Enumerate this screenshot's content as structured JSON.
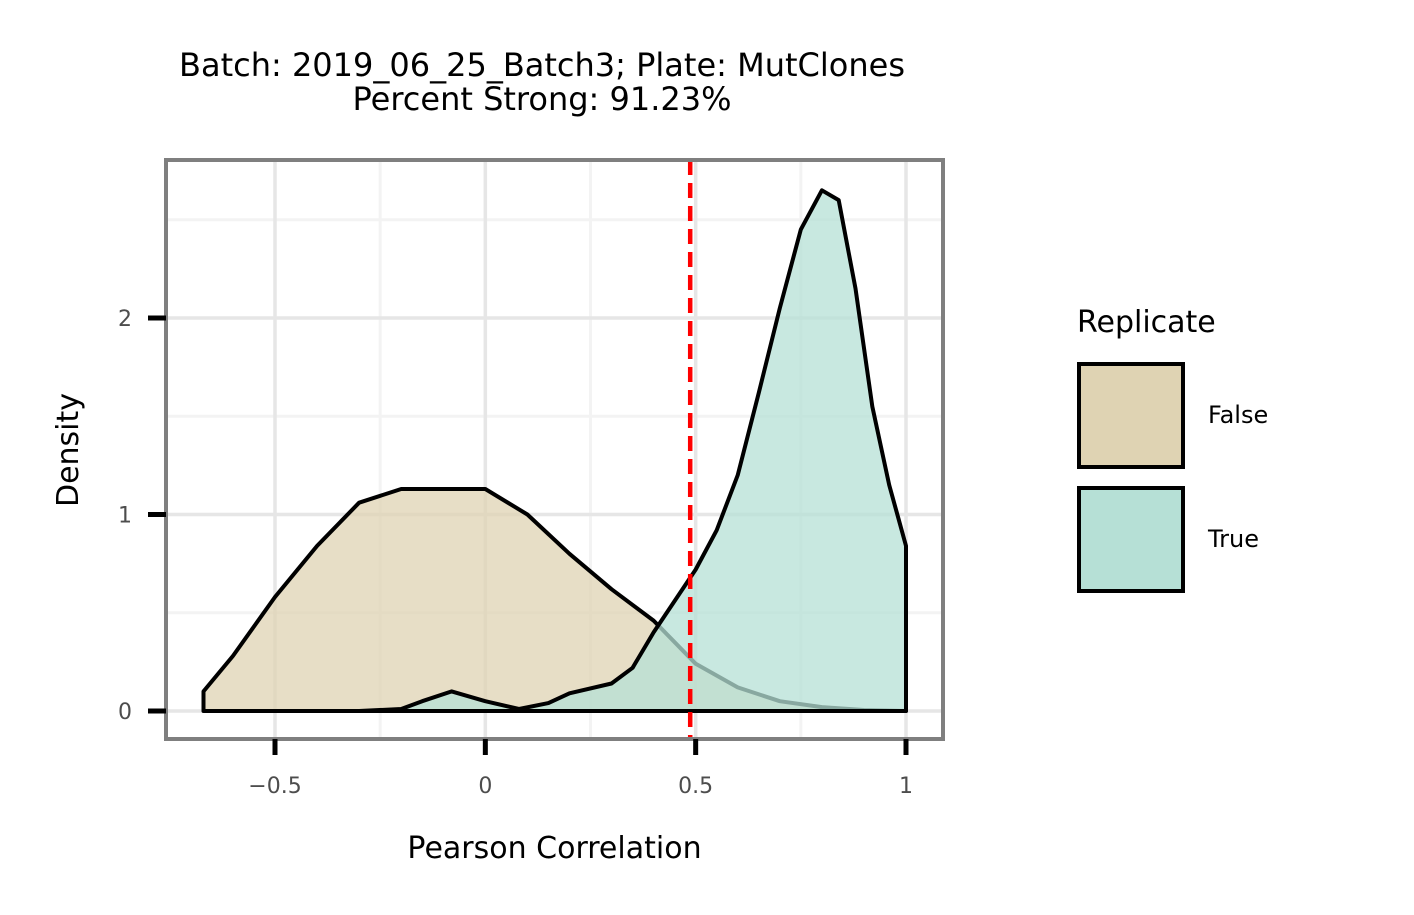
{
  "chart_data": {
    "type": "area",
    "title": "Batch: 2019_06_25_Batch3; Plate: MutClones",
    "subtitle": "Percent Strong: 91.23%",
    "xlabel": "Pearson Correlation",
    "ylabel": "Density",
    "xlim": [
      -0.75,
      1.09
    ],
    "ylim": [
      -0.14,
      2.81
    ],
    "x_ticks": [
      -0.5,
      0,
      0.5,
      1
    ],
    "x_tick_labels": [
      "−0.5",
      "0",
      "0.5",
      "1"
    ],
    "y_ticks": [
      0,
      1,
      2
    ],
    "y_tick_labels": [
      "0",
      "1",
      "2"
    ],
    "grid": true,
    "threshold_line": {
      "x": 0.487,
      "color": "#ff0000",
      "style": "dashed"
    },
    "legend": {
      "title": "Replicate",
      "position": "right"
    },
    "series": [
      {
        "name": "False",
        "color": "#dfd3b3",
        "x": [
          -0.67,
          -0.67,
          -0.6,
          -0.5,
          -0.4,
          -0.3,
          -0.2,
          -0.1,
          0.0,
          0.1,
          0.2,
          0.3,
          0.4,
          0.5,
          0.6,
          0.7,
          0.8,
          0.9,
          1.0
        ],
        "y": [
          0.0,
          0.1,
          0.28,
          0.58,
          0.84,
          1.06,
          1.13,
          1.13,
          1.13,
          1.0,
          0.8,
          0.62,
          0.46,
          0.24,
          0.12,
          0.05,
          0.02,
          0.005,
          0.0
        ]
      },
      {
        "name": "True",
        "color": "#b6e0d6",
        "x": [
          -0.3,
          -0.2,
          -0.15,
          -0.08,
          0.0,
          0.08,
          0.15,
          0.2,
          0.3,
          0.35,
          0.4,
          0.45,
          0.5,
          0.55,
          0.6,
          0.65,
          0.7,
          0.75,
          0.8,
          0.84,
          0.88,
          0.92,
          0.96,
          1.0,
          1.0
        ],
        "y": [
          0.0,
          0.01,
          0.05,
          0.1,
          0.05,
          0.01,
          0.04,
          0.09,
          0.14,
          0.22,
          0.4,
          0.56,
          0.72,
          0.92,
          1.2,
          1.62,
          2.05,
          2.45,
          2.65,
          2.6,
          2.15,
          1.55,
          1.15,
          0.84,
          0.0
        ]
      }
    ]
  }
}
